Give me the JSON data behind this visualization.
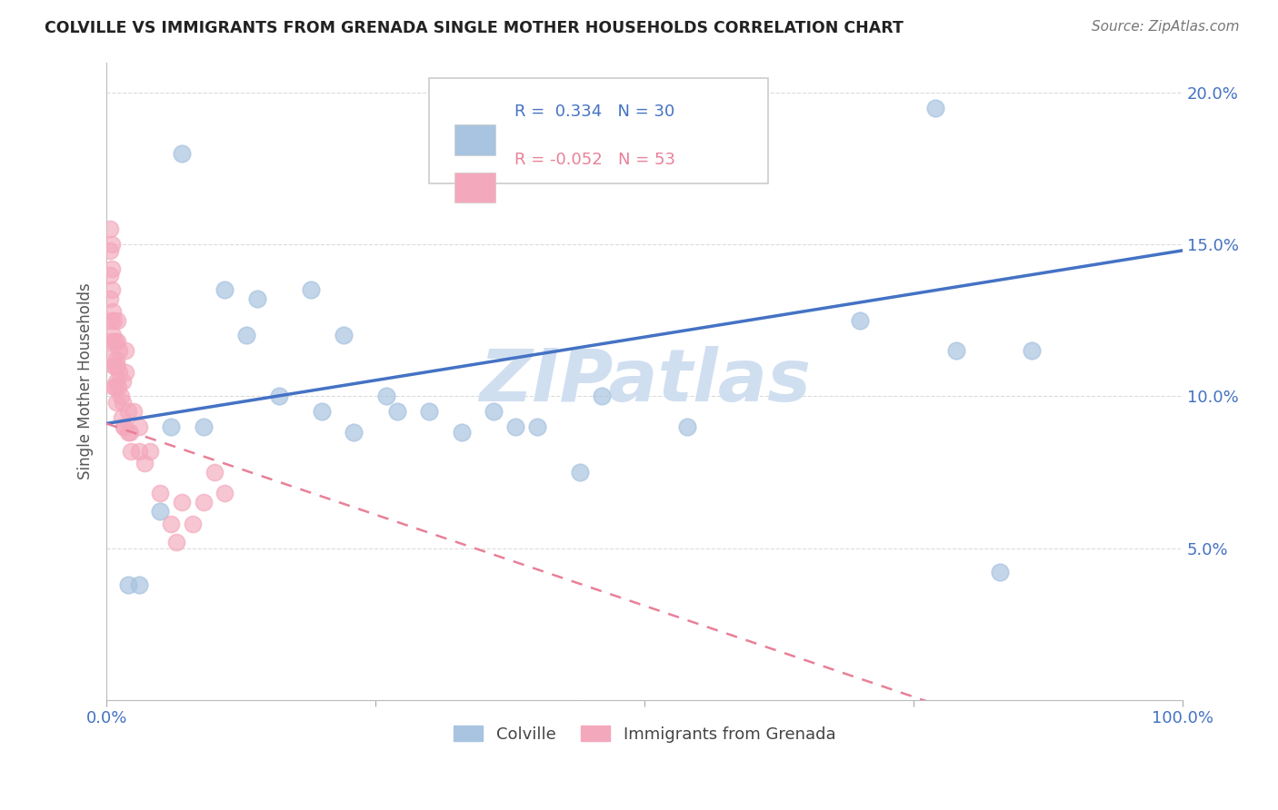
{
  "title": "COLVILLE VS IMMIGRANTS FROM GRENADA SINGLE MOTHER HOUSEHOLDS CORRELATION CHART",
  "source": "Source: ZipAtlas.com",
  "ylabel": "Single Mother Households",
  "legend_labels": [
    "Colville",
    "Immigrants from Grenada"
  ],
  "colville_R": 0.334,
  "colville_N": 30,
  "grenada_R": -0.052,
  "grenada_N": 53,
  "x_min": 0.0,
  "x_max": 1.0,
  "y_min": 0.0,
  "y_max": 0.21,
  "y_ticks": [
    0.0,
    0.05,
    0.1,
    0.15,
    0.2
  ],
  "y_tick_labels": [
    "",
    "5.0%",
    "10.0%",
    "15.0%",
    "20.0%"
  ],
  "x_tick_labels": [
    "0.0%",
    "",
    "",
    "",
    "100.0%"
  ],
  "colville_color": "#a8c4e0",
  "grenada_color": "#f4a8bc",
  "colville_line_color": "#4472c4",
  "grenada_line_color": "#e88098",
  "watermark_color": "#d0dff0",
  "background_color": "#ffffff",
  "grid_color": "#cccccc",
  "colville_x": [
    0.07,
    0.14,
    0.19,
    0.22,
    0.26,
    0.3,
    0.36,
    0.4,
    0.46,
    0.5,
    0.54,
    0.7,
    0.77,
    0.79,
    0.83,
    0.86,
    0.02,
    0.03,
    0.05,
    0.06,
    0.09,
    0.11,
    0.13,
    0.16,
    0.2,
    0.23,
    0.27,
    0.33,
    0.38,
    0.44
  ],
  "colville_y": [
    0.18,
    0.132,
    0.135,
    0.12,
    0.1,
    0.095,
    0.095,
    0.09,
    0.1,
    0.175,
    0.09,
    0.125,
    0.195,
    0.115,
    0.042,
    0.115,
    0.038,
    0.038,
    0.062,
    0.09,
    0.09,
    0.135,
    0.12,
    0.1,
    0.095,
    0.088,
    0.095,
    0.088,
    0.09,
    0.075
  ],
  "grenada_x": [
    0.003,
    0.003,
    0.003,
    0.003,
    0.004,
    0.004,
    0.005,
    0.005,
    0.005,
    0.006,
    0.006,
    0.006,
    0.007,
    0.007,
    0.007,
    0.007,
    0.008,
    0.008,
    0.008,
    0.009,
    0.009,
    0.009,
    0.01,
    0.01,
    0.01,
    0.011,
    0.012,
    0.012,
    0.013,
    0.014,
    0.015,
    0.015,
    0.016,
    0.017,
    0.018,
    0.018,
    0.02,
    0.02,
    0.022,
    0.023,
    0.025,
    0.03,
    0.03,
    0.035,
    0.04,
    0.05,
    0.06,
    0.065,
    0.07,
    0.08,
    0.09,
    0.1,
    0.11
  ],
  "grenada_y": [
    0.155,
    0.148,
    0.14,
    0.132,
    0.125,
    0.118,
    0.15,
    0.142,
    0.135,
    0.128,
    0.12,
    0.113,
    0.125,
    0.118,
    0.11,
    0.103,
    0.118,
    0.11,
    0.103,
    0.112,
    0.105,
    0.098,
    0.125,
    0.118,
    0.11,
    0.103,
    0.115,
    0.108,
    0.1,
    0.093,
    0.105,
    0.098,
    0.09,
    0.09,
    0.115,
    0.108,
    0.095,
    0.088,
    0.088,
    0.082,
    0.095,
    0.09,
    0.082,
    0.078,
    0.082,
    0.068,
    0.058,
    0.052,
    0.065,
    0.058,
    0.065,
    0.075,
    0.068
  ],
  "colville_trend_x": [
    0.0,
    1.0
  ],
  "colville_trend_y": [
    0.091,
    0.148
  ],
  "grenada_trend_x0": 0.0,
  "grenada_trend_y0": 0.091,
  "grenada_trend_slope": -0.12
}
